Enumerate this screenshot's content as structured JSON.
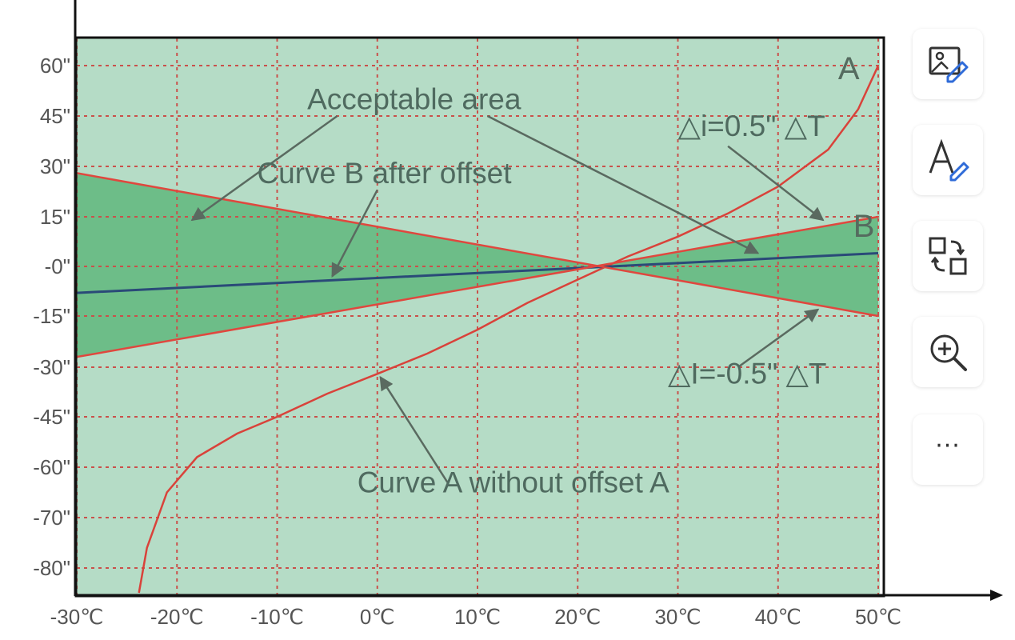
{
  "chart_data": {
    "type": "line",
    "title": "",
    "xlabel": "",
    "ylabel": "",
    "xlim": [
      -30,
      50
    ],
    "ylim": [
      -85,
      67
    ],
    "grid": true,
    "background_color": "#b5dcc6",
    "band_color": "#6dbd88",
    "x_ticks": [
      {
        "value": -30,
        "label": "-30℃"
      },
      {
        "value": -20,
        "label": "-20℃"
      },
      {
        "value": -10,
        "label": "-10℃"
      },
      {
        "value": 0,
        "label": "0℃"
      },
      {
        "value": 10,
        "label": "10℃"
      },
      {
        "value": 20,
        "label": "20℃"
      },
      {
        "value": 30,
        "label": "30℃"
      },
      {
        "value": 40,
        "label": "40℃"
      },
      {
        "value": 50,
        "label": "50℃"
      }
    ],
    "y_ticks": [
      {
        "value": 60,
        "label": "60\""
      },
      {
        "value": 45,
        "label": "45\""
      },
      {
        "value": 30,
        "label": "30\""
      },
      {
        "value": 15,
        "label": "15\""
      },
      {
        "value": 0,
        "label": "-0\""
      },
      {
        "value": -15,
        "label": "-15\""
      },
      {
        "value": -30,
        "label": "-30\""
      },
      {
        "value": -45,
        "label": "-45\""
      },
      {
        "value": -60,
        "label": "-60\""
      },
      {
        "value": -70,
        "label": "-70\""
      },
      {
        "value": -80,
        "label": "-80\""
      }
    ],
    "series": [
      {
        "name": "A",
        "color": "#d9423a",
        "x": [
          -23.8,
          -23,
          -21,
          -18,
          -14,
          -10,
          -5,
          0,
          5,
          10,
          15,
          20,
          25,
          30,
          35,
          40,
          45,
          48,
          50
        ],
        "y": [
          -85,
          -76,
          -65,
          -57,
          -50,
          -45,
          -38,
          -32,
          -26,
          -19,
          -11,
          -4,
          3,
          9,
          16,
          24,
          35,
          47,
          60
        ]
      },
      {
        "name": "B",
        "color": "#2a4a78",
        "x": [
          -30,
          50
        ],
        "y": [
          -8,
          4
        ]
      },
      {
        "color": "#e0473e",
        "x": [
          -30,
          50
        ],
        "y": [
          28,
          -15
        ]
      },
      {
        "color": "#e0473e",
        "x": [
          -30,
          50
        ],
        "y": [
          -27,
          15
        ]
      }
    ],
    "annotations": [
      {
        "text": "Acceptable area",
        "at": [
          -7,
          47
        ]
      },
      {
        "text": "Curve B after offset",
        "at": [
          -12,
          25
        ]
      },
      {
        "text": "△i=0.5\"  △T",
        "at": [
          30,
          39
        ]
      },
      {
        "text": "△I=-0.5\"  △T",
        "at": [
          29,
          -35
        ]
      },
      {
        "text": "Curve A without offset A",
        "at": [
          -2,
          -65
        ]
      }
    ],
    "series_labels": [
      {
        "text": "A",
        "at": [
          46,
          56
        ]
      },
      {
        "text": "B",
        "at": [
          47.5,
          9
        ]
      }
    ],
    "arrows": [
      {
        "from": [
          -4,
          45
        ],
        "to": [
          -18.5,
          14
        ]
      },
      {
        "from": [
          11,
          45
        ],
        "to": [
          38,
          4
        ]
      },
      {
        "from": [
          0,
          23
        ],
        "to": [
          -4.5,
          -3
        ]
      },
      {
        "from": [
          35,
          36
        ],
        "to": [
          44.5,
          14
        ]
      },
      {
        "from": [
          36,
          -30
        ],
        "to": [
          44,
          -13
        ]
      },
      {
        "from": [
          7,
          -63
        ],
        "to": [
          0.3,
          -33
        ]
      }
    ]
  },
  "toolbar": {
    "buttons": [
      {
        "icon": "image-edit-icon"
      },
      {
        "icon": "text-edit-icon"
      },
      {
        "icon": "swap-icon"
      },
      {
        "icon": "zoom-in-icon"
      },
      {
        "icon": "more-icon",
        "label": "···"
      }
    ]
  }
}
